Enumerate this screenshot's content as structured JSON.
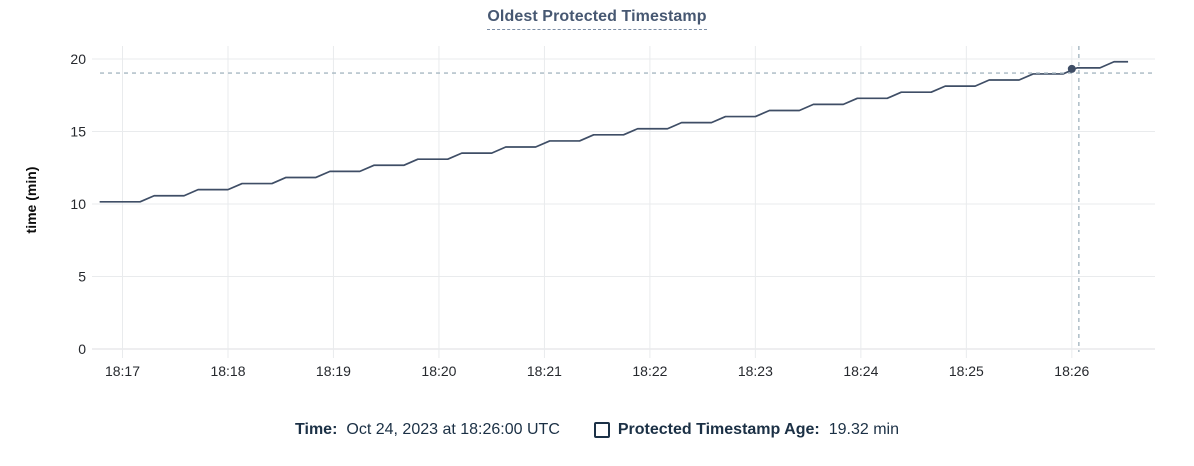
{
  "title": "Oldest Protected Timestamp",
  "tooltip_legend": {
    "time_label": "Time:",
    "time_value": "Oct 24, 2023 at 18:26:00 UTC",
    "series_label": "Protected Timestamp Age:",
    "series_value": "19.32 min"
  },
  "colors": {
    "title": "#475872",
    "line": "#3f4e66",
    "crosshair": "#a7b8c2",
    "grid": "#e9ebed",
    "grid_baseline": "#dcdee1",
    "legend_text": "#1b3045"
  },
  "chart_data": {
    "type": "line",
    "line_style": "step",
    "title": "Oldest Protected Timestamp",
    "xlabel": "",
    "ylabel": "time (min)",
    "ylim": [
      0,
      20
    ],
    "y_ticks": [
      0,
      5,
      10,
      15,
      20
    ],
    "x_ticks": [
      "18:17",
      "18:18",
      "18:19",
      "18:20",
      "18:21",
      "18:22",
      "18:23",
      "18:24",
      "18:25",
      "18:26"
    ],
    "grid": true,
    "legend_position": "bottom",
    "t_unit": "seconds after 18:17:00",
    "series": [
      {
        "name": "Protected Timestamp Age",
        "unit": "min",
        "points": [
          [
            -13,
            10.15
          ],
          [
            10,
            10.15
          ],
          [
            18,
            10.57
          ],
          [
            35,
            10.57
          ],
          [
            43,
            10.99
          ],
          [
            60,
            10.99
          ],
          [
            68,
            11.41
          ],
          [
            85,
            11.41
          ],
          [
            93,
            11.83
          ],
          [
            110,
            11.83
          ],
          [
            118,
            12.25
          ],
          [
            135,
            12.25
          ],
          [
            143,
            12.67
          ],
          [
            160,
            12.67
          ],
          [
            168,
            13.09
          ],
          [
            185,
            13.09
          ],
          [
            193,
            13.51
          ],
          [
            210,
            13.51
          ],
          [
            218,
            13.93
          ],
          [
            235,
            13.93
          ],
          [
            243,
            14.35
          ],
          [
            260,
            14.35
          ],
          [
            268,
            14.77
          ],
          [
            285,
            14.77
          ],
          [
            293,
            15.19
          ],
          [
            310,
            15.19
          ],
          [
            318,
            15.61
          ],
          [
            335,
            15.61
          ],
          [
            343,
            16.03
          ],
          [
            360,
            16.03
          ],
          [
            368,
            16.45
          ],
          [
            385,
            16.45
          ],
          [
            393,
            16.87
          ],
          [
            410,
            16.87
          ],
          [
            418,
            17.29
          ],
          [
            435,
            17.29
          ],
          [
            443,
            17.71
          ],
          [
            460,
            17.71
          ],
          [
            468,
            18.13
          ],
          [
            485,
            18.13
          ],
          [
            493,
            18.55
          ],
          [
            510,
            18.55
          ],
          [
            518,
            18.97
          ],
          [
            535,
            18.97
          ],
          [
            543,
            19.39
          ],
          [
            556,
            19.39
          ],
          [
            564,
            19.81
          ],
          [
            572,
            19.81
          ]
        ]
      }
    ],
    "hover": {
      "snapped_point": {
        "t": 540,
        "time": "18:26:00",
        "value_min": 19.32
      },
      "cursor": {
        "t": 544,
        "value_min": 19.03
      }
    }
  }
}
